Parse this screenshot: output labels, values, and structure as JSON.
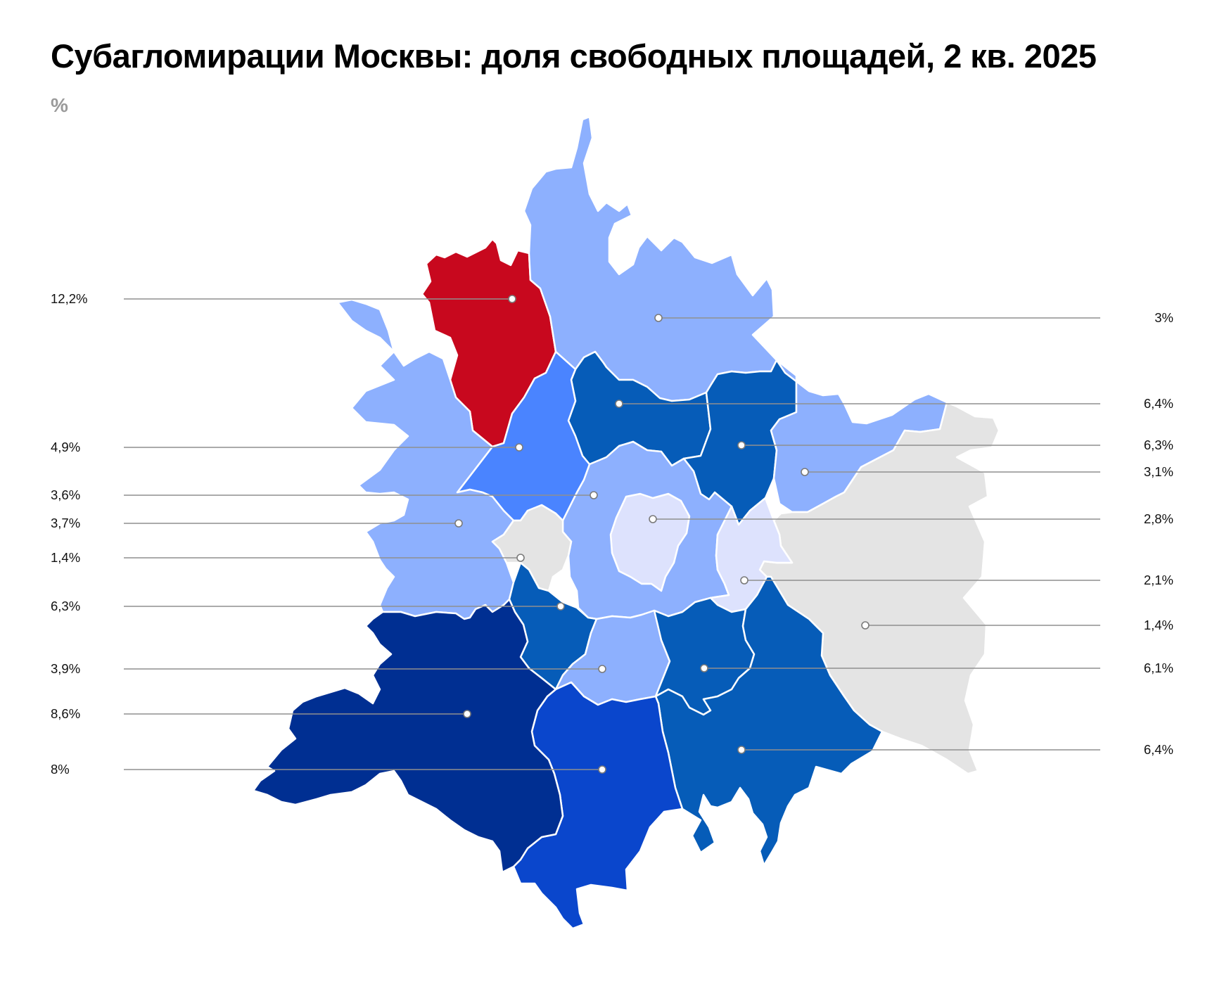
{
  "title": "Субагломирации Москвы: доля свободных площадей, 2 кв. 2025",
  "unit": "%",
  "colors": {
    "highest": "#c8081e",
    "very_high": "#002f92",
    "high": "#0a46cc",
    "medium_high": "#065cb8",
    "medium": "#4a84ff",
    "low": "#8db0fe",
    "very_low": "#dde2fd",
    "lowest": "#e4e4e4"
  },
  "regions": [
    {
      "id": "r-nw-far",
      "value": "12,2%",
      "side": "left",
      "color": "#c8081e"
    },
    {
      "id": "r-north",
      "value": "3%",
      "side": "right",
      "color": "#8db0fe"
    },
    {
      "id": "r-n-inner",
      "value": "6,4%",
      "side": "right",
      "color": "#065cb8"
    },
    {
      "id": "r-ne-inner",
      "value": "6,3%",
      "side": "right",
      "color": "#065cb8"
    },
    {
      "id": "r-east-ring",
      "value": "3,1%",
      "side": "right",
      "color": "#8db0fe"
    },
    {
      "id": "r-center",
      "value": "2,8%",
      "side": "right",
      "color": "#dde2fd"
    },
    {
      "id": "r-east-inner",
      "value": "2,1%",
      "side": "right",
      "color": "#dde2fd"
    },
    {
      "id": "r-east-far",
      "value": "1,4%",
      "side": "right",
      "color": "#e4e4e4"
    },
    {
      "id": "r-se-inner",
      "value": "6,1%",
      "side": "right",
      "color": "#065cb8"
    },
    {
      "id": "r-se-far",
      "value": "6,4%",
      "side": "right",
      "color": "#065cb8"
    },
    {
      "id": "r-nw-inner",
      "value": "4,9%",
      "side": "left",
      "color": "#4a84ff"
    },
    {
      "id": "r-ring",
      "value": "3,6%",
      "side": "left",
      "color": "#8db0fe"
    },
    {
      "id": "r-west",
      "value": "3,7%",
      "side": "left",
      "color": "#8db0fe"
    },
    {
      "id": "r-west-inner",
      "value": "1,4%",
      "side": "left",
      "color": "#e4e4e4"
    },
    {
      "id": "r-sw-inner",
      "value": "6,3%",
      "side": "left",
      "color": "#065cb8"
    },
    {
      "id": "r-south-inner",
      "value": "3,9%",
      "side": "left",
      "color": "#8db0fe"
    },
    {
      "id": "r-sw-far",
      "value": "8,6%",
      "side": "left",
      "color": "#002f92"
    },
    {
      "id": "r-south-far",
      "value": "8%",
      "side": "left",
      "color": "#0a46cc"
    }
  ]
}
